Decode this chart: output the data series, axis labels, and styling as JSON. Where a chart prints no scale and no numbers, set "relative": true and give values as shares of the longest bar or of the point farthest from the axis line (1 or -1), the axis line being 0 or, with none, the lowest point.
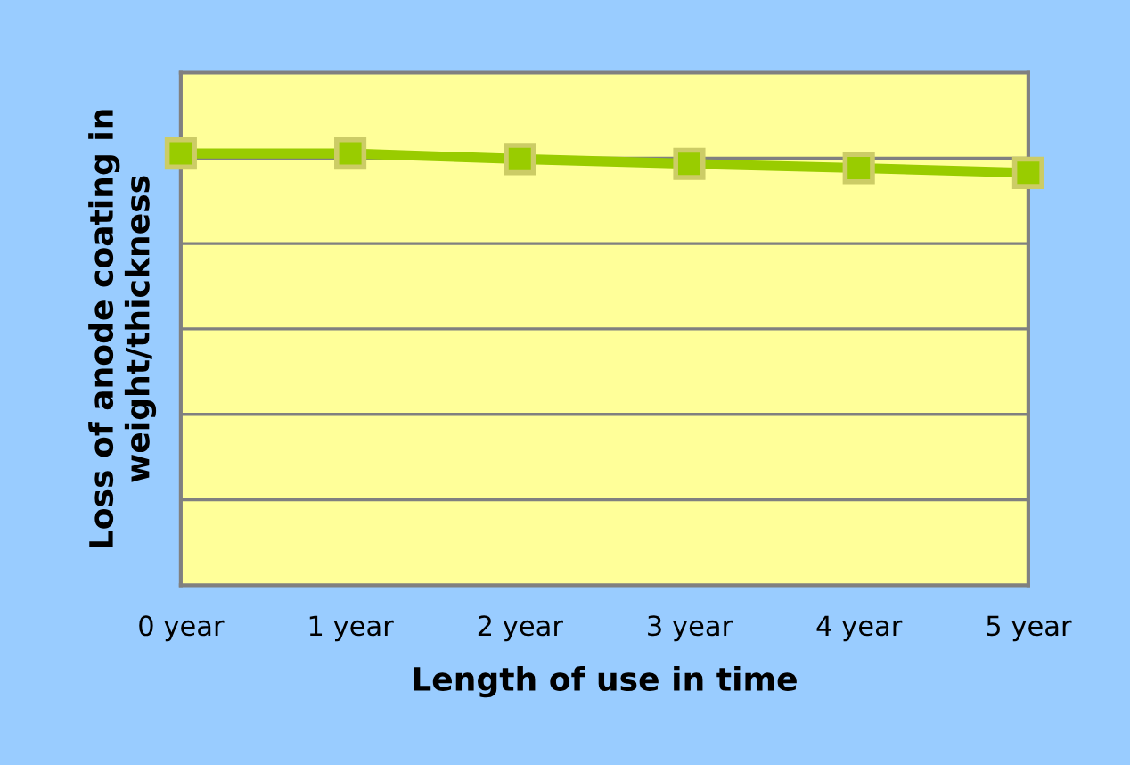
{
  "chart_data": {
    "type": "line",
    "relative": true,
    "xlabel": "Length of use in time",
    "ylabel": "Loss of anode coating in\nweight/thickness",
    "categories": [
      "0 year",
      "1 year",
      "2 year",
      "3 year",
      "4 year",
      "5 year"
    ],
    "series": [
      {
        "color": "#99cc00",
        "values": [
          1,
          1,
          0.987,
          0.976,
          0.966,
          0.955
        ]
      }
    ],
    "marker": "square",
    "line_style": "solid",
    "grid": "y",
    "legend": false
  }
}
